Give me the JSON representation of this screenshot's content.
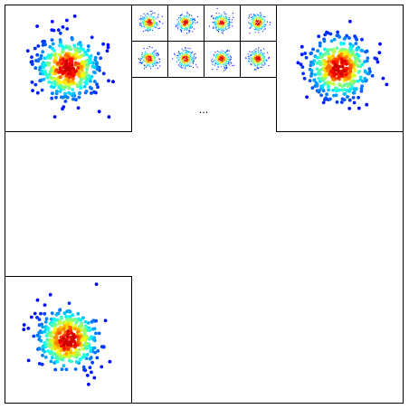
{
  "ellipsis": "..."
}
